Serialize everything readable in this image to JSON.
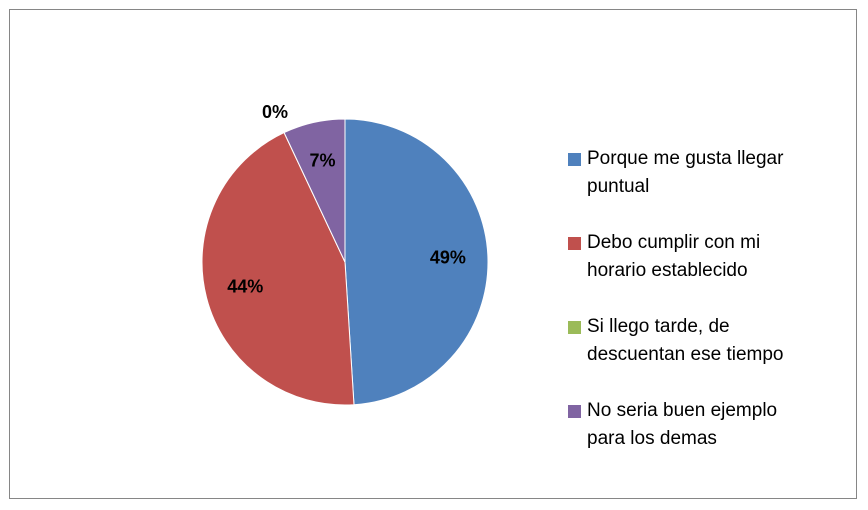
{
  "chart_data": {
    "type": "pie",
    "categories": [
      "Porque me gusta llegar puntual",
      "Debo cumplir con mi horario establecido",
      "Si llego tarde, de descuentan ese tiempo",
      "No seria buen ejemplo para los demas"
    ],
    "values": [
      49,
      44,
      0,
      7
    ],
    "value_labels": [
      "49%",
      "44%",
      "0%",
      "7%"
    ],
    "colors": [
      "#4f81bd",
      "#c0504d",
      "#9bbb59",
      "#8064a2"
    ],
    "legend": "right"
  }
}
